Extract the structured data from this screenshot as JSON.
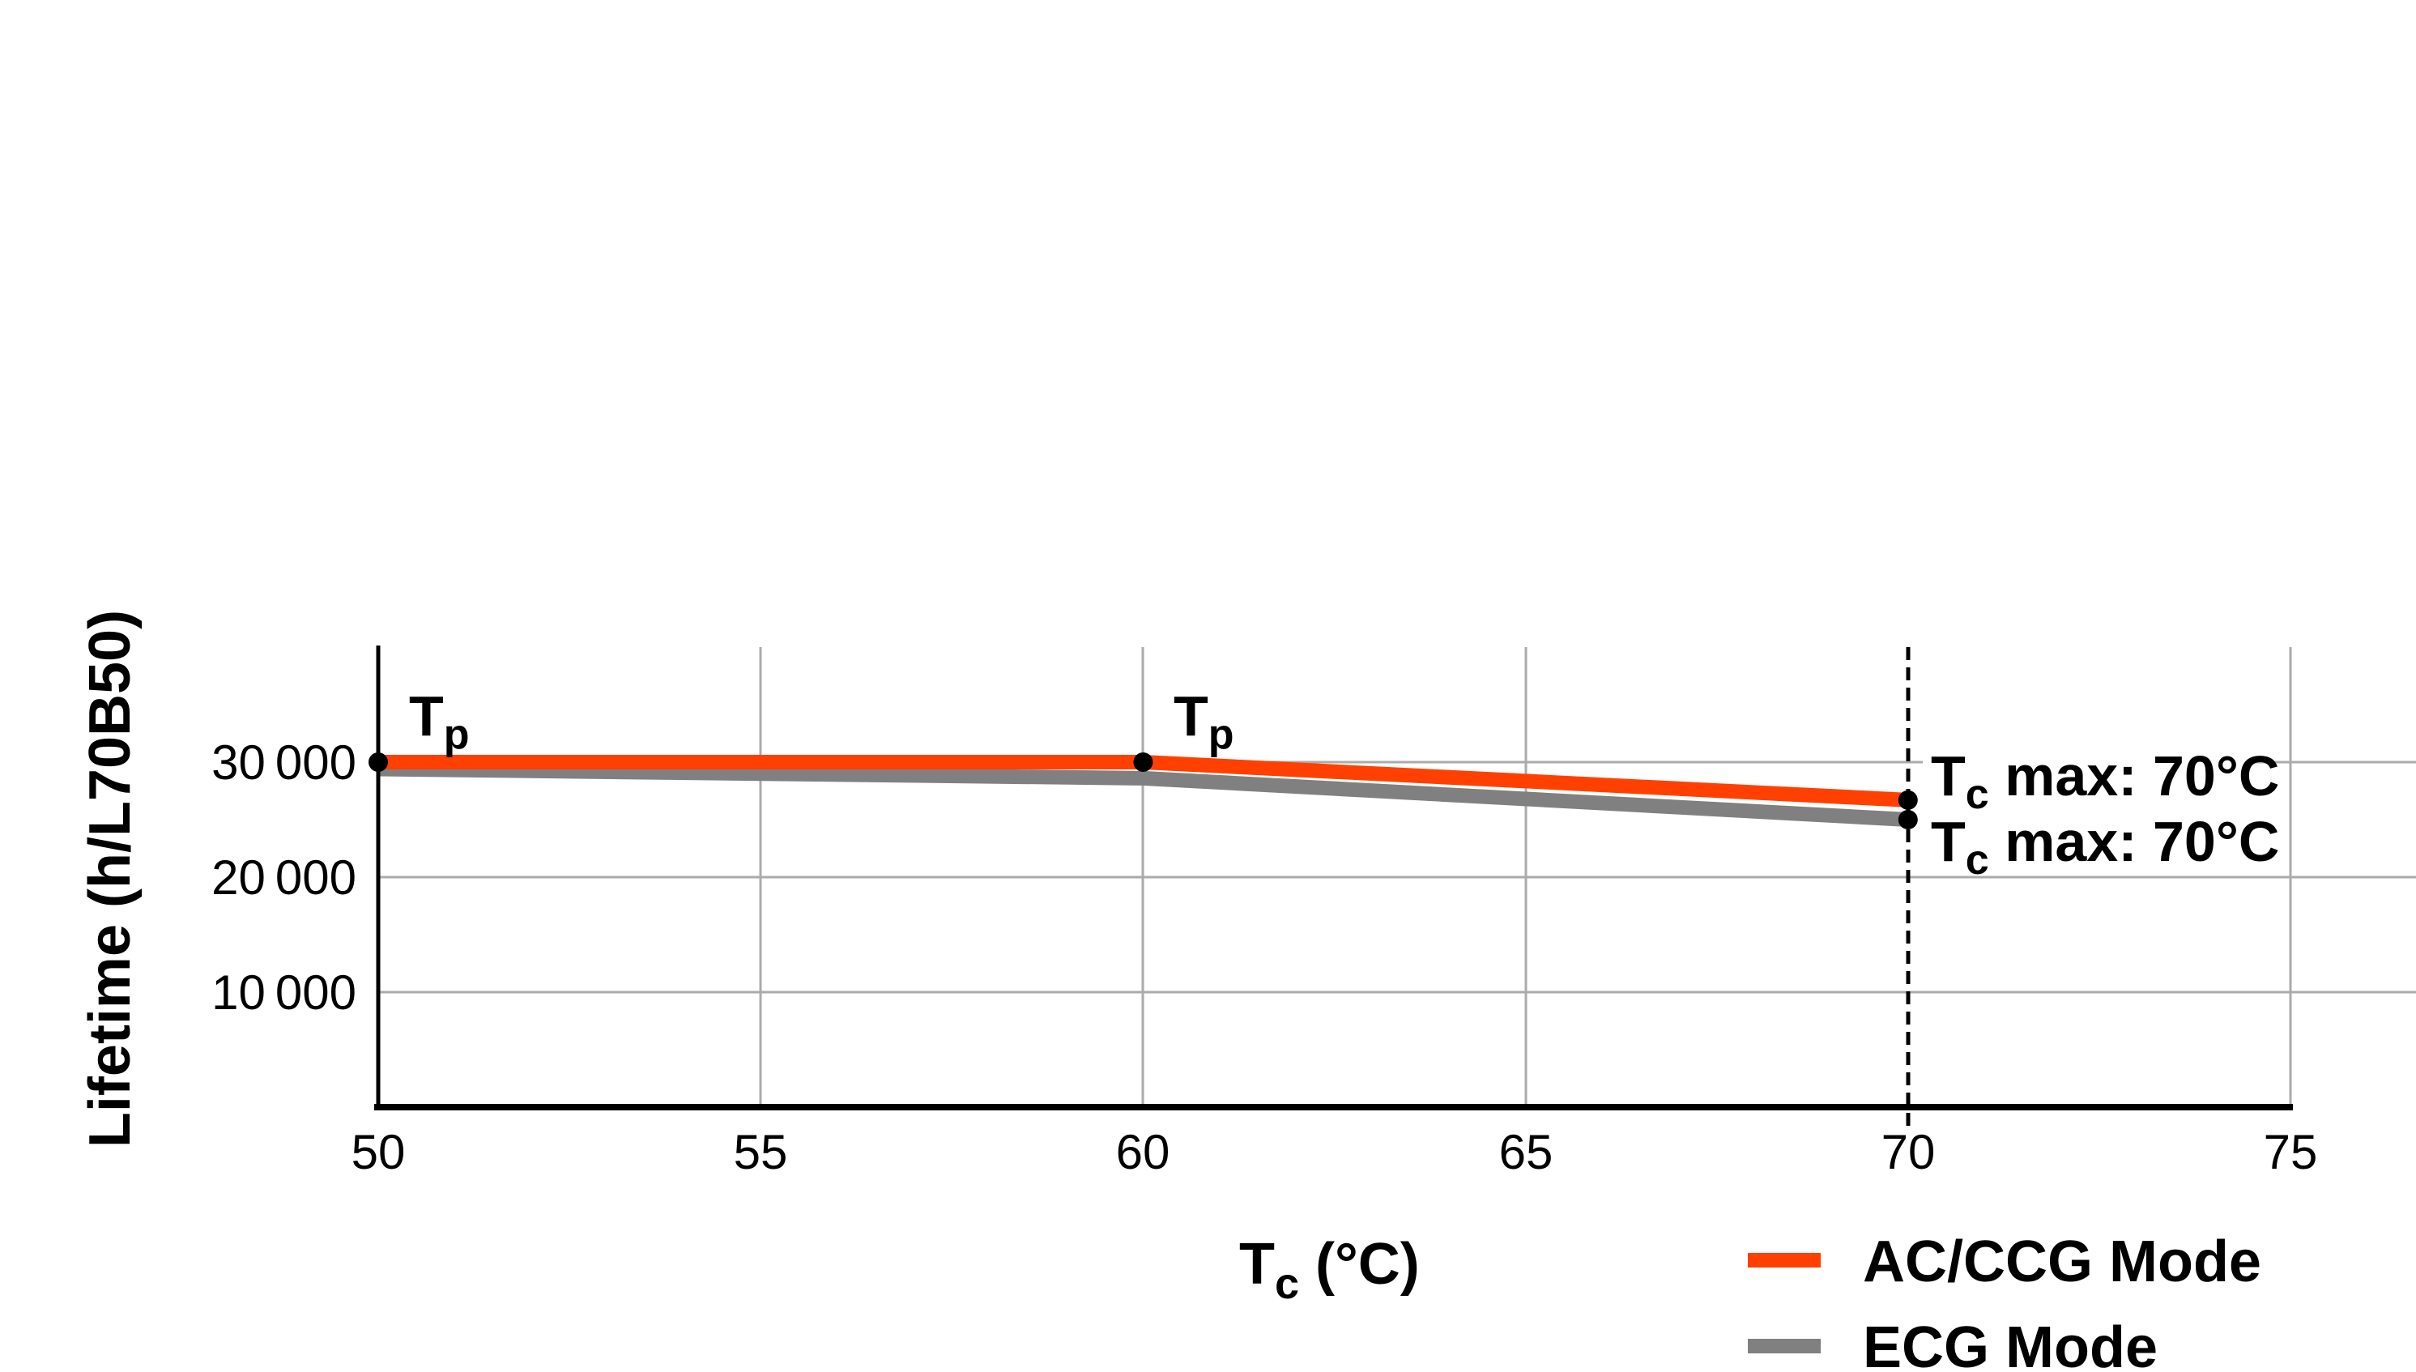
{
  "page": {
    "background": "#FFFFFF"
  },
  "chart_data": {
    "type": "line",
    "x": [
      50,
      60,
      70
    ],
    "series": [
      {
        "name": "AC/CCG Mode",
        "color": "#FF4000",
        "values": [
          30000,
          30000,
          26700
        ]
      },
      {
        "name": "ECG Mode",
        "color": "#808080",
        "values": [
          29400,
          28600,
          25000
        ]
      }
    ],
    "title": "",
    "xlabel": "Tc (°C)",
    "ylabel": "Lifetime (h/L70B50)",
    "xlim": [
      50,
      75
    ],
    "ylim": [
      0,
      40000
    ],
    "xticks": [
      50,
      55,
      60,
      65,
      70,
      75
    ],
    "yticks": [
      10000,
      20000,
      30000
    ],
    "grid": true,
    "gridline_color": "#ABABAB",
    "legend_position": "bottom-right",
    "marker_color": "#000000",
    "annotations": [
      {
        "text": "Tp",
        "x": 50,
        "y": 30000,
        "position": "above-right"
      },
      {
        "text": "Tp",
        "x": 60,
        "y": 30000,
        "position": "above-right"
      },
      {
        "text": "Tc max: 70°C",
        "x": 70,
        "y": 26700,
        "series": "AC/CCG Mode"
      },
      {
        "text": "Tc max: 70°C",
        "x": 70,
        "y": 25000,
        "series": "ECG Mode"
      },
      {
        "type": "vline",
        "x": 70,
        "style": "dashed",
        "color": "#000000"
      }
    ]
  },
  "labels": {
    "ylabel": "Lifetime (h/L70B50)",
    "xlabel_main": "T",
    "xlabel_sub": "c",
    "xlabel_rest": " (°C)",
    "tp_main": "T",
    "tp_sub": "p",
    "tcmax_main": "T",
    "tcmax_sub": "c",
    "tcmax_rest": " max: 70°C",
    "y_ticks": [
      "30 000",
      "20 000",
      "10 000"
    ],
    "x_ticks": [
      "50",
      "55",
      "60",
      "65",
      "70",
      "75"
    ]
  },
  "legend": {
    "items": [
      {
        "label": "AC/CCG Mode",
        "color": "#FF4000"
      },
      {
        "label": "ECG Mode",
        "color": "#808080"
      }
    ]
  }
}
